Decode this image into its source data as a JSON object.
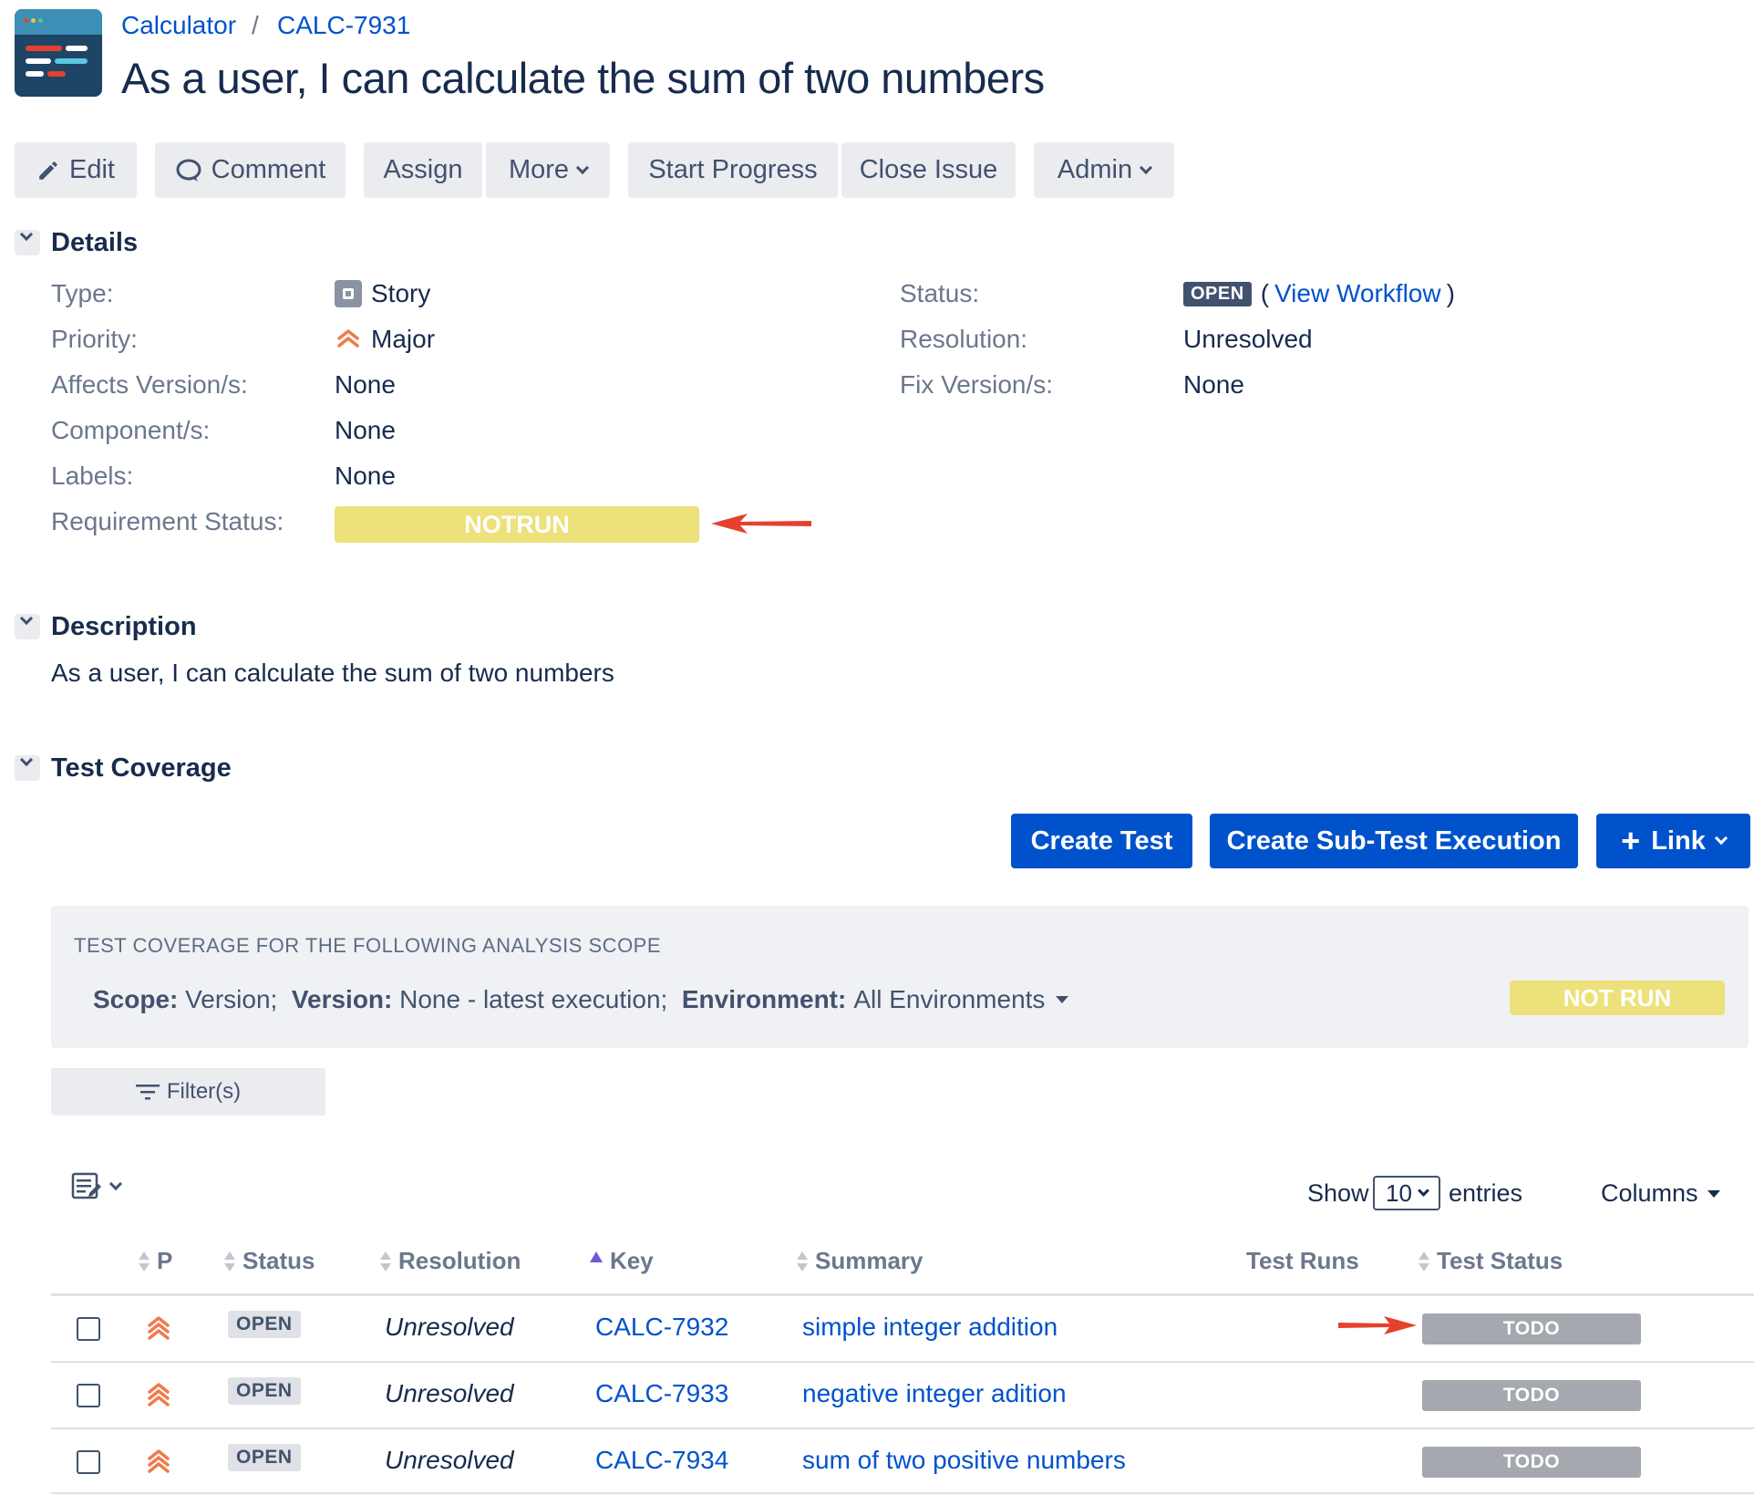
{
  "breadcrumb": {
    "project": "Calculator",
    "separator": "/",
    "issue_key": "CALC-7931"
  },
  "title": "As a user, I can calculate the sum of two numbers",
  "toolbar": {
    "edit": "Edit",
    "comment": "Comment",
    "assign": "Assign",
    "more": "More",
    "start_progress": "Start Progress",
    "close_issue": "Close Issue",
    "admin": "Admin"
  },
  "details": {
    "heading": "Details",
    "type_label": "Type:",
    "type_value": "Story",
    "priority_label": "Priority:",
    "priority_value": "Major",
    "affects_label": "Affects Version/s:",
    "affects_value": "None",
    "component_label": "Component/s:",
    "component_value": "None",
    "labels_label": "Labels:",
    "labels_value": "None",
    "req_status_label": "Requirement Status:",
    "req_status_value": "NOTRUN",
    "status_label": "Status:",
    "status_value": "OPEN",
    "view_workflow": "View Workflow",
    "paren_open": "(",
    "paren_close": ")",
    "resolution_label": "Resolution:",
    "resolution_value": "Unresolved",
    "fix_label": "Fix Version/s:",
    "fix_value": "None"
  },
  "description": {
    "heading": "Description",
    "text": "As a user, I can calculate the sum of two numbers"
  },
  "coverage": {
    "heading": "Test Coverage",
    "create_test": "Create Test",
    "create_sub": "Create Sub-Test Execution",
    "link": "Link",
    "scope_title": "TEST COVERAGE FOR THE FOLLOWING ANALYSIS SCOPE",
    "scope_label": "Scope:",
    "scope_value": "Version;",
    "version_label": "Version:",
    "version_value": "None - latest execution;",
    "env_label": "Environment:",
    "env_value": "All Environments",
    "overall_status": "NOT RUN",
    "filter": "Filter(s)",
    "show": "Show",
    "entries_count": "10",
    "entries": "entries",
    "columns": "Columns",
    "headers": [
      "P",
      "Status",
      "Resolution",
      "Key",
      "Summary",
      "Test Runs",
      "Test Status"
    ],
    "rows": [
      {
        "status": "OPEN",
        "resolution": "Unresolved",
        "key": "CALC-7932",
        "summary": "simple integer addition",
        "test_status": "TODO"
      },
      {
        "status": "OPEN",
        "resolution": "Unresolved",
        "key": "CALC-7933",
        "summary": "negative integer adition",
        "test_status": "TODO"
      },
      {
        "status": "OPEN",
        "resolution": "Unresolved",
        "key": "CALC-7934",
        "summary": "sum of two positive numbers",
        "test_status": "TODO"
      }
    ]
  },
  "colors": {
    "link": "#0052cc",
    "primary": "#0052cc",
    "notrun": "#ece17b",
    "todo": "#a5a8ae",
    "arrow": "#e5412d",
    "priority": "#ef7b4d"
  }
}
